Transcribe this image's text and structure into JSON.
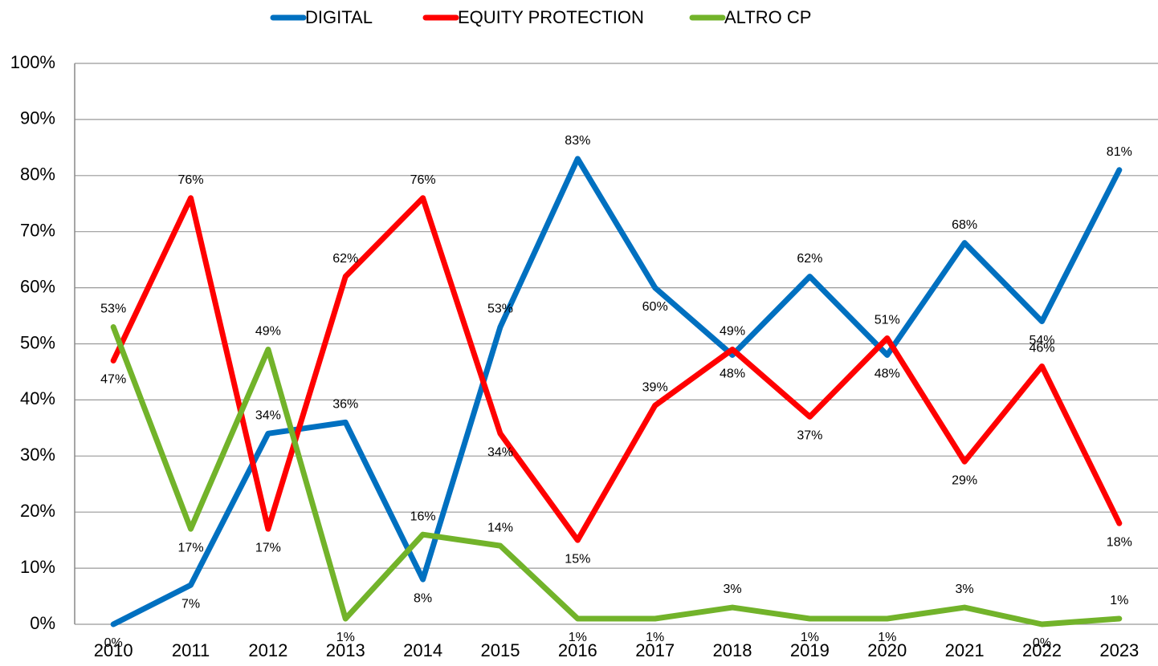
{
  "chart_data": {
    "type": "line",
    "categories": [
      "2010",
      "2011",
      "2012",
      "2013",
      "2014",
      "2015",
      "2016",
      "2017",
      "2018",
      "2019",
      "2020",
      "2021",
      "2022",
      "2023"
    ],
    "series": [
      {
        "name": "DIGITAL",
        "color": "#0070c0",
        "values": [
          0,
          7,
          34,
          36,
          8,
          53,
          83,
          60,
          48,
          62,
          48,
          68,
          54,
          81
        ],
        "value_labels": [
          "0%",
          "7%",
          "34%",
          "36%",
          "8%",
          "53%",
          "83%",
          "60%",
          "48%",
          "62%",
          "48%",
          "68%",
          "54%",
          "81%"
        ]
      },
      {
        "name": "EQUITY PROTECTION",
        "color": "#ff0000",
        "values": [
          47,
          76,
          17,
          62,
          76,
          34,
          15,
          39,
          49,
          37,
          51,
          29,
          46,
          18
        ],
        "value_labels": [
          "47%",
          "76%",
          "17%",
          "62%",
          "76%",
          "34%",
          "15%",
          "39%",
          "49%",
          "37%",
          "51%",
          "29%",
          "46%",
          "18%"
        ]
      },
      {
        "name": "ALTRO CP",
        "color": "#72b32a",
        "values": [
          53,
          17,
          49,
          1,
          16,
          14,
          1,
          1,
          3,
          1,
          1,
          3,
          0,
          1
        ],
        "value_labels": [
          "53%",
          "17%",
          "49%",
          "1%",
          "16%",
          "14%",
          "1%",
          "1%",
          "3%",
          "1%",
          "1%",
          "3%",
          "0%",
          "1%"
        ]
      }
    ],
    "ylim": [
      0,
      100
    ],
    "yticks": [
      {
        "value": 0,
        "label": "0%"
      },
      {
        "value": 10,
        "label": "10%"
      },
      {
        "value": 20,
        "label": "20%"
      },
      {
        "value": 30,
        "label": "30%"
      },
      {
        "value": 40,
        "label": "40%"
      },
      {
        "value": 50,
        "label": "50%"
      },
      {
        "value": 60,
        "label": "60%"
      },
      {
        "value": 70,
        "label": "70%"
      },
      {
        "value": 80,
        "label": "80%"
      },
      {
        "value": 90,
        "label": "90%"
      },
      {
        "value": 100,
        "label": "100%"
      }
    ],
    "grid": true,
    "legend": "top"
  }
}
